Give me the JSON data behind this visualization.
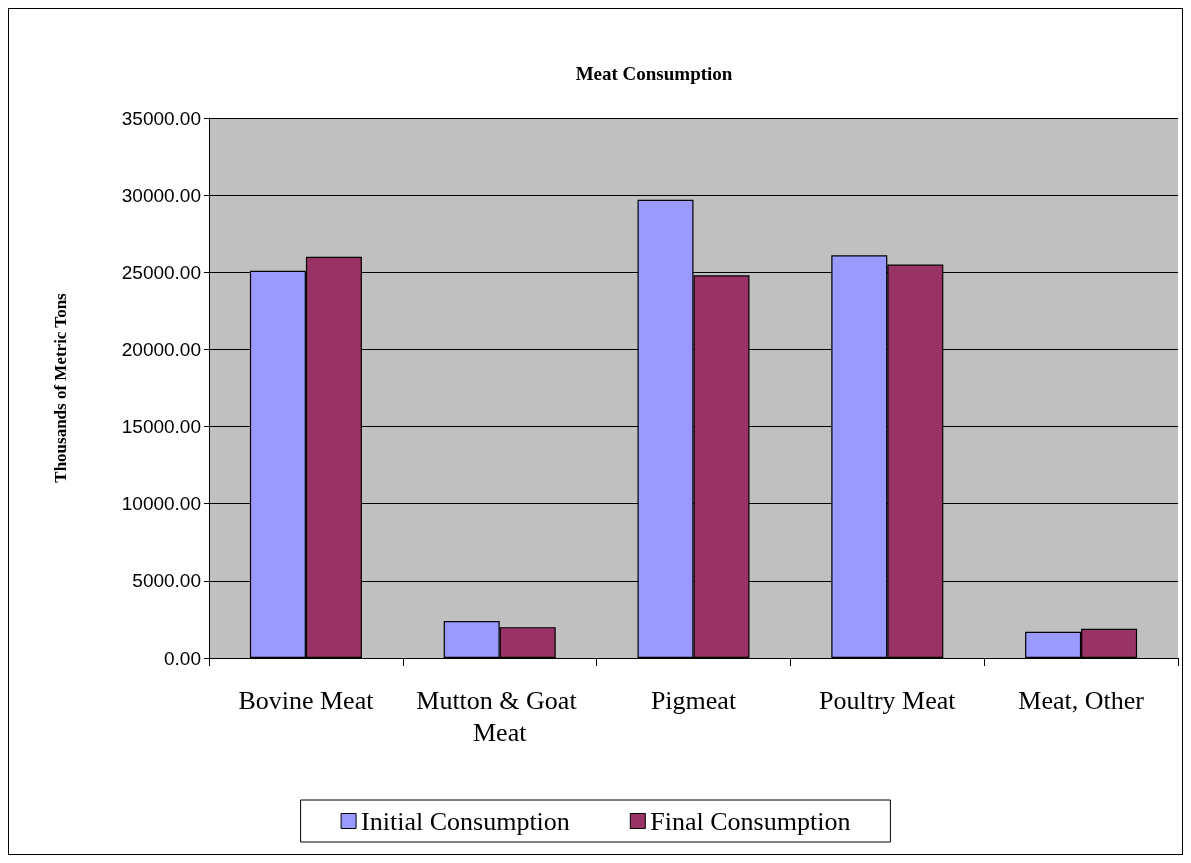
{
  "chart_data": {
    "type": "bar",
    "title": "Meat Consumption",
    "ylabel": "Thousands of Metric Tons",
    "categories": [
      "Bovine Meat",
      "Mutton & Goat Meat",
      "Pigmeat",
      "Poultry Meat",
      "Meat, Other"
    ],
    "series": [
      {
        "name": "Initial Consumption",
        "color": "#9999ff",
        "values": [
          25100,
          2400,
          29700,
          26100,
          1700
        ]
      },
      {
        "name": "Final Consumption",
        "color": "#993366",
        "values": [
          26000,
          2000,
          24800,
          25500,
          1900
        ]
      }
    ],
    "ylim": [
      0,
      35000
    ],
    "yticks": [
      {
        "value": 0,
        "label": "0.00"
      },
      {
        "value": 5000,
        "label": "5000.00"
      },
      {
        "value": 10000,
        "label": "10000.00"
      },
      {
        "value": 15000,
        "label": "15000.00"
      },
      {
        "value": 20000,
        "label": "20000.00"
      },
      {
        "value": 25000,
        "label": "25000.00"
      },
      {
        "value": 30000,
        "label": "30000.00"
      },
      {
        "value": 35000,
        "label": "35000.00"
      }
    ],
    "grid": "y",
    "legend": "bottom"
  }
}
